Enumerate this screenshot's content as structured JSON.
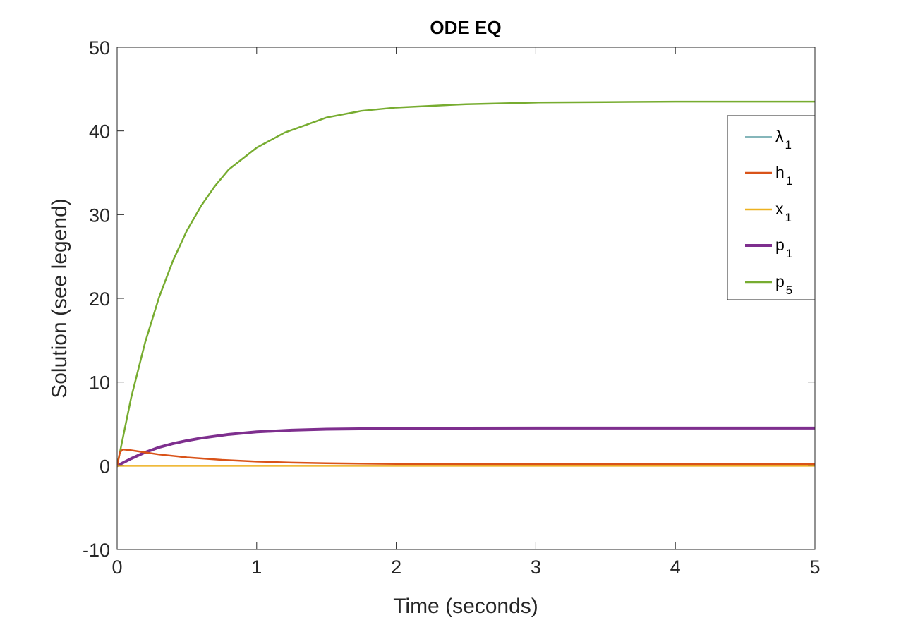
{
  "chart_data": {
    "type": "line",
    "title": "ODE EQ",
    "xlabel": "Time (seconds)",
    "ylabel": "Solution (see legend)",
    "xlim": [
      0,
      5
    ],
    "ylim": [
      -10,
      50
    ],
    "x_ticks": [
      "0",
      "1",
      "2",
      "3",
      "4",
      "5"
    ],
    "y_ticks": [
      "-10",
      "0",
      "10",
      "20",
      "30",
      "40",
      "50"
    ],
    "grid": false,
    "legend_position": "top-right",
    "series": [
      {
        "name": "λ1",
        "legend_main": "λ",
        "legend_sub": "1",
        "color": "#0b6e75",
        "linewidth": 1,
        "x": [
          0,
          0.5,
          1,
          1.5,
          2,
          2.5,
          3,
          3.5,
          4,
          4.5,
          5
        ],
        "y": [
          0,
          0,
          0,
          0,
          0,
          0,
          0,
          0,
          0,
          0,
          0
        ]
      },
      {
        "name": "h1",
        "legend_main": "h",
        "legend_sub": "1",
        "color": "#d95319",
        "linewidth": 2.5,
        "x": [
          0,
          0.02,
          0.04,
          0.1,
          0.2,
          0.3,
          0.5,
          0.75,
          1,
          1.25,
          1.5,
          2,
          2.5,
          3,
          3.5,
          4,
          4.5,
          5
        ],
        "y": [
          0,
          1.6,
          1.95,
          1.85,
          1.6,
          1.35,
          1.0,
          0.7,
          0.5,
          0.38,
          0.3,
          0.22,
          0.2,
          0.19,
          0.19,
          0.19,
          0.19,
          0.19
        ]
      },
      {
        "name": "x1",
        "legend_main": "x",
        "legend_sub": "1",
        "color": "#edb120",
        "linewidth": 2.5,
        "x": [
          0,
          0.5,
          1,
          1.5,
          2,
          2.5,
          3,
          3.5,
          4,
          4.5,
          5
        ],
        "y": [
          0,
          0,
          0,
          0,
          0,
          0,
          0,
          0,
          0,
          0,
          0
        ]
      },
      {
        "name": "p1",
        "legend_main": "p",
        "legend_sub": "1",
        "color": "#7e2f8e",
        "linewidth": 4,
        "x": [
          0,
          0.1,
          0.2,
          0.3,
          0.4,
          0.5,
          0.6,
          0.8,
          1,
          1.25,
          1.5,
          2,
          2.5,
          3,
          3.5,
          4,
          4.5,
          5
        ],
        "y": [
          0,
          0.85,
          1.6,
          2.2,
          2.65,
          3.0,
          3.3,
          3.75,
          4.05,
          4.25,
          4.37,
          4.46,
          4.49,
          4.5,
          4.5,
          4.5,
          4.5,
          4.5
        ]
      },
      {
        "name": "p5",
        "legend_main": "p",
        "legend_sub": "5",
        "color": "#77ac30",
        "linewidth": 2.5,
        "x": [
          0,
          0.1,
          0.2,
          0.3,
          0.4,
          0.5,
          0.6,
          0.7,
          0.8,
          1,
          1.2,
          1.5,
          1.75,
          2,
          2.5,
          3,
          3.5,
          4,
          4.5,
          5
        ],
        "y": [
          0,
          8.1,
          14.7,
          20.1,
          24.5,
          28.1,
          31.0,
          33.4,
          35.4,
          38.0,
          39.8,
          41.6,
          42.4,
          42.8,
          43.2,
          43.4,
          43.45,
          43.5,
          43.5,
          43.5
        ]
      }
    ]
  }
}
